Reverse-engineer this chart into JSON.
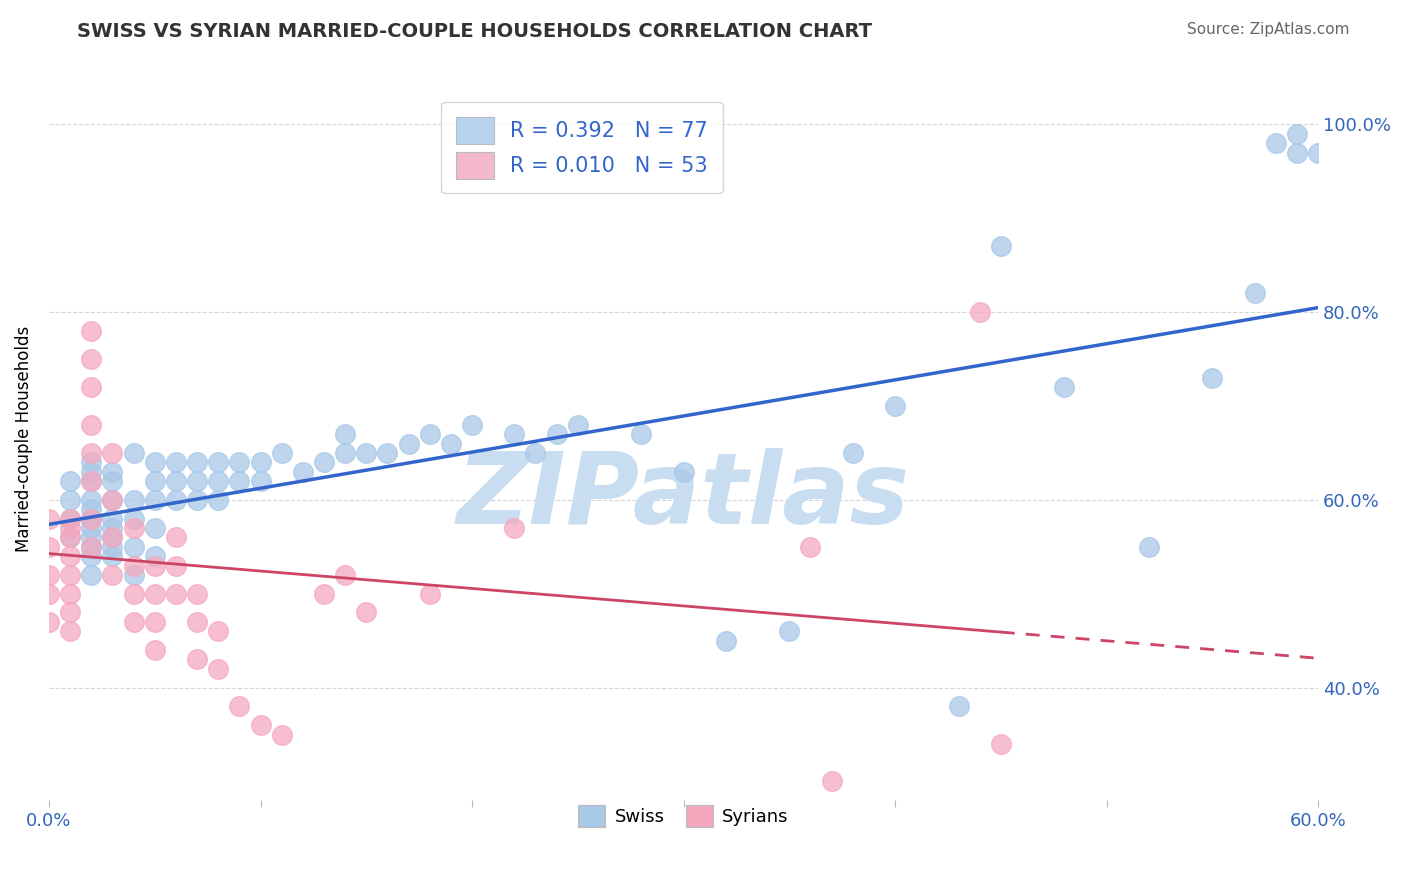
{
  "title": "SWISS VS SYRIAN MARRIED-COUPLE HOUSEHOLDS CORRELATION CHART",
  "source": "Source: ZipAtlas.com",
  "ylabel": "Married-couple Households",
  "xlim": [
    0.0,
    0.6
  ],
  "ylim": [
    0.28,
    1.05
  ],
  "xticks": [
    0.0,
    0.1,
    0.2,
    0.3,
    0.4,
    0.5,
    0.6
  ],
  "xticklabels": [
    "0.0%",
    "",
    "",
    "",
    "",
    "",
    "60.0%"
  ],
  "yticks": [
    0.4,
    0.6,
    0.8,
    1.0
  ],
  "yticklabels": [
    "40.0%",
    "60.0%",
    "80.0%",
    "100.0%"
  ],
  "swiss_color": "#a8c8e8",
  "syrian_color": "#f4a8be",
  "swiss_line_color": "#3366cc",
  "syrian_line_color": "#cc4466",
  "legend_swiss_label": "R = 0.392   N = 77",
  "legend_syrian_label": "R = 0.010   N = 53",
  "legend_swiss_face": "#b8d4f0",
  "legend_syrian_face": "#f4b8cc",
  "watermark": "ZIPatlas",
  "watermark_color": "#c8ddf0",
  "swiss_x": [
    0.01,
    0.01,
    0.01,
    0.01,
    0.02,
    0.02,
    0.02,
    0.02,
    0.02,
    0.02,
    0.02,
    0.02,
    0.02,
    0.02,
    0.02,
    0.03,
    0.03,
    0.03,
    0.03,
    0.03,
    0.03,
    0.03,
    0.03,
    0.04,
    0.04,
    0.04,
    0.04,
    0.04,
    0.05,
    0.05,
    0.05,
    0.05,
    0.05,
    0.06,
    0.06,
    0.06,
    0.07,
    0.07,
    0.07,
    0.08,
    0.08,
    0.08,
    0.09,
    0.09,
    0.1,
    0.1,
    0.11,
    0.12,
    0.13,
    0.14,
    0.14,
    0.15,
    0.16,
    0.17,
    0.18,
    0.19,
    0.2,
    0.22,
    0.23,
    0.24,
    0.25,
    0.28,
    0.3,
    0.32,
    0.35,
    0.38,
    0.4,
    0.43,
    0.45,
    0.48,
    0.52,
    0.55,
    0.57,
    0.58,
    0.59,
    0.59,
    0.6
  ],
  "swiss_y": [
    0.56,
    0.58,
    0.6,
    0.62,
    0.52,
    0.54,
    0.56,
    0.58,
    0.6,
    0.62,
    0.64,
    0.55,
    0.57,
    0.59,
    0.63,
    0.54,
    0.56,
    0.58,
    0.6,
    0.62,
    0.63,
    0.57,
    0.55,
    0.52,
    0.55,
    0.58,
    0.6,
    0.65,
    0.54,
    0.57,
    0.6,
    0.62,
    0.64,
    0.6,
    0.62,
    0.64,
    0.6,
    0.62,
    0.64,
    0.6,
    0.62,
    0.64,
    0.62,
    0.64,
    0.62,
    0.64,
    0.65,
    0.63,
    0.64,
    0.65,
    0.67,
    0.65,
    0.65,
    0.66,
    0.67,
    0.66,
    0.68,
    0.67,
    0.65,
    0.67,
    0.68,
    0.67,
    0.63,
    0.45,
    0.46,
    0.65,
    0.7,
    0.38,
    0.87,
    0.72,
    0.55,
    0.73,
    0.82,
    0.98,
    0.97,
    0.99,
    0.97
  ],
  "syrian_x": [
    0.0,
    0.0,
    0.0,
    0.0,
    0.0,
    0.01,
    0.01,
    0.01,
    0.01,
    0.01,
    0.01,
    0.01,
    0.01,
    0.02,
    0.02,
    0.02,
    0.02,
    0.02,
    0.02,
    0.02,
    0.02,
    0.03,
    0.03,
    0.03,
    0.03,
    0.04,
    0.04,
    0.04,
    0.04,
    0.05,
    0.05,
    0.05,
    0.05,
    0.06,
    0.06,
    0.06,
    0.07,
    0.07,
    0.07,
    0.08,
    0.08,
    0.09,
    0.1,
    0.11,
    0.13,
    0.14,
    0.15,
    0.18,
    0.22,
    0.36,
    0.37,
    0.44,
    0.45
  ],
  "syrian_y": [
    0.52,
    0.55,
    0.58,
    0.5,
    0.47,
    0.52,
    0.54,
    0.56,
    0.5,
    0.48,
    0.58,
    0.46,
    0.57,
    0.78,
    0.72,
    0.65,
    0.62,
    0.58,
    0.68,
    0.75,
    0.55,
    0.65,
    0.6,
    0.56,
    0.52,
    0.57,
    0.53,
    0.5,
    0.47,
    0.53,
    0.5,
    0.47,
    0.44,
    0.56,
    0.53,
    0.5,
    0.5,
    0.47,
    0.43,
    0.46,
    0.42,
    0.38,
    0.36,
    0.35,
    0.5,
    0.52,
    0.48,
    0.5,
    0.57,
    0.55,
    0.3,
    0.8,
    0.34
  ]
}
